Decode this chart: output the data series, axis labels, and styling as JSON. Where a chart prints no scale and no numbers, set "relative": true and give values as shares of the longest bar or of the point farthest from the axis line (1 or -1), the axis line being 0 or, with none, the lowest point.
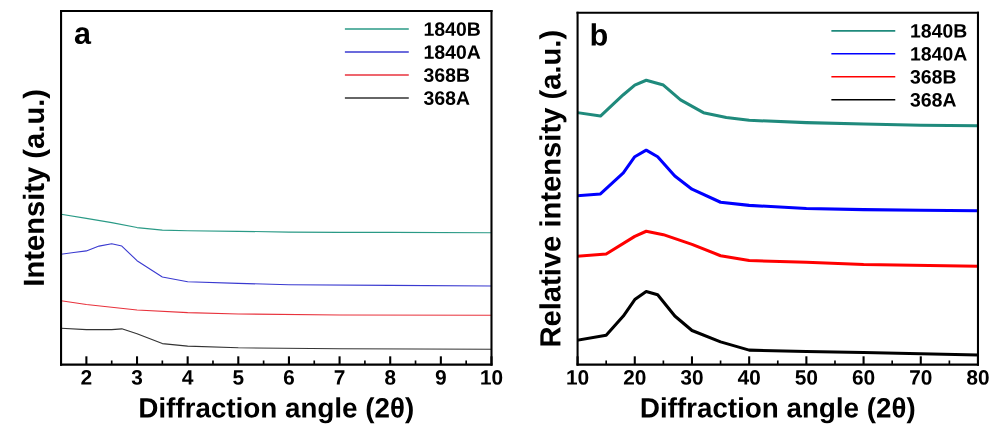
{
  "chart_data": [
    {
      "type": "line",
      "title": "a",
      "xlabel": "Diffraction angle (2θ)",
      "ylabel": "Intensity (a.u.)",
      "relative": true,
      "legend": "top right",
      "xlim": [
        1.5,
        10
      ],
      "xticks": [
        2,
        3,
        4,
        5,
        6,
        7,
        8,
        9,
        10
      ],
      "tick_labels": "x",
      "series": [
        {
          "name": "1840B",
          "color": "#2a9a86",
          "x": [
            1.5,
            2,
            2.5,
            3,
            3.5,
            4,
            5,
            6,
            7,
            8,
            10
          ],
          "values": [
            1.0,
            0.972,
            0.944,
            0.911,
            0.894,
            0.89,
            0.886,
            0.881,
            0.879,
            0.879,
            0.877
          ]
        },
        {
          "name": "1840A",
          "color": "#3a3ad0",
          "x": [
            1.5,
            1.75,
            2,
            2.25,
            2.5,
            2.7,
            3,
            3.3,
            3.5,
            4,
            5,
            6,
            8,
            10
          ],
          "values": [
            0.734,
            0.745,
            0.756,
            0.788,
            0.803,
            0.788,
            0.691,
            0.626,
            0.583,
            0.551,
            0.54,
            0.531,
            0.527,
            0.523
          ]
        },
        {
          "name": "368B",
          "color": "#e8323c",
          "x": [
            1.5,
            2,
            3,
            4,
            5,
            7,
            10
          ],
          "values": [
            0.425,
            0.4,
            0.363,
            0.346,
            0.337,
            0.33,
            0.328
          ]
        },
        {
          "name": "368A",
          "color": "#333333",
          "x": [
            1.5,
            2,
            2.5,
            2.7,
            3,
            3.5,
            4,
            5,
            7,
            10
          ],
          "values": [
            0.242,
            0.233,
            0.233,
            0.238,
            0.205,
            0.14,
            0.123,
            0.112,
            0.106,
            0.102
          ]
        }
      ]
    },
    {
      "type": "line",
      "title": "b",
      "xlabel": "Diffraction angle (2θ)",
      "ylabel": "Relative intensity (a.u.)",
      "relative": true,
      "legend": "top right",
      "xlim": [
        10,
        80
      ],
      "xticks": [
        10,
        20,
        30,
        40,
        50,
        60,
        70,
        80
      ],
      "tick_labels": "x",
      "series": [
        {
          "name": "1840B",
          "color": "#1f8a7c",
          "x": [
            10,
            14,
            18,
            20,
            22,
            25,
            28,
            32,
            36,
            40,
            50,
            60,
            70,
            80
          ],
          "values": [
            0.886,
            0.874,
            0.949,
            0.983,
            1.0,
            0.983,
            0.931,
            0.886,
            0.869,
            0.859,
            0.851,
            0.846,
            0.842,
            0.84
          ]
        },
        {
          "name": "1840A",
          "color": "#0000ff",
          "x": [
            10,
            14,
            18,
            20,
            22,
            24,
            27,
            30,
            35,
            40,
            50,
            60,
            70,
            80
          ],
          "values": [
            0.594,
            0.6,
            0.674,
            0.731,
            0.754,
            0.731,
            0.663,
            0.617,
            0.571,
            0.56,
            0.549,
            0.545,
            0.543,
            0.541
          ]
        },
        {
          "name": "368B",
          "color": "#ff0000",
          "x": [
            10,
            15,
            20,
            22,
            25,
            30,
            35,
            40,
            50,
            60,
            80
          ],
          "values": [
            0.381,
            0.389,
            0.451,
            0.469,
            0.457,
            0.423,
            0.383,
            0.366,
            0.36,
            0.352,
            0.346
          ]
        },
        {
          "name": "368A",
          "color": "#000000",
          "x": [
            10,
            15,
            18,
            20,
            22,
            24,
            27,
            30,
            35,
            40,
            50,
            60,
            80
          ],
          "values": [
            0.086,
            0.103,
            0.171,
            0.229,
            0.257,
            0.246,
            0.171,
            0.12,
            0.08,
            0.051,
            0.046,
            0.043,
            0.034
          ]
        }
      ]
    }
  ]
}
